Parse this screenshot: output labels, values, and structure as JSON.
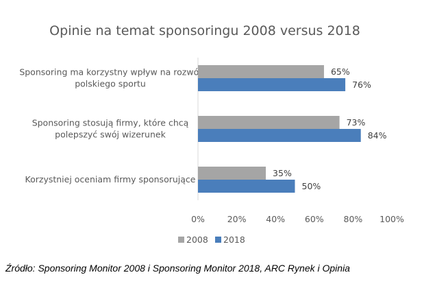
{
  "chart_data": {
    "type": "bar",
    "orientation": "horizontal",
    "title": "Opinie na temat sponsoringu 2008 versus 2018",
    "categories": [
      [
        "Sponsoring ma korzystny wpływ na rozwój",
        "polskiego sportu"
      ],
      [
        "Sponsoring stosują firmy, które chcą",
        "polepszyć swój wizerunek"
      ],
      [
        "Korzystniej oceniam firmy sponsorujące"
      ]
    ],
    "series": [
      {
        "name": "2008",
        "color": "#a5a5a5",
        "values": [
          65,
          73,
          35
        ],
        "labels": [
          "65%",
          "73%",
          "35%"
        ]
      },
      {
        "name": "2018",
        "color": "#4a7ebb",
        "values": [
          76,
          84,
          50
        ],
        "labels": [
          "76%",
          "84%",
          "50%"
        ]
      }
    ],
    "xlim": [
      0,
      100
    ],
    "xticks": [
      "0%",
      "20%",
      "40%",
      "60%",
      "80%",
      "100%"
    ],
    "xlabel": "",
    "ylabel": "",
    "grid": false,
    "legend": {
      "placement": "bottom-left",
      "entries": [
        "2008",
        "2018"
      ]
    }
  },
  "source": "Źródło: Sponsoring Monitor 2008 i Sponsoring Monitor 2018, ARC Rynek i Opinia"
}
